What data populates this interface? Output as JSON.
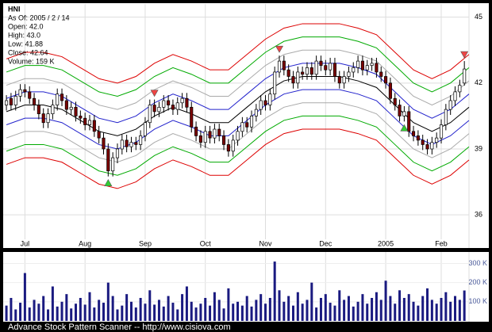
{
  "chart_data": {
    "type": "candlestick",
    "ticker": "HNI",
    "info": [
      "As Of: 2005 / 2 / 14",
      "Open: 42.0",
      "High: 43.0",
      "Low: 41.88",
      "Close: 42.64",
      "Volume: 159 K"
    ],
    "footer": "Advance Stock Pattern Scanner -- http://www.cisiova.com",
    "xlim": [
      -0.7,
      100
    ],
    "xticks": [
      {
        "value": 4,
        "label": "Jul"
      },
      {
        "value": 17,
        "label": "Aug"
      },
      {
        "value": 30,
        "label": "Sep"
      },
      {
        "value": 43,
        "label": "Oct"
      },
      {
        "value": 56,
        "label": "Nov"
      },
      {
        "value": 69,
        "label": "Dec"
      },
      {
        "value": 82,
        "label": "2005"
      },
      {
        "value": 94,
        "label": "Feb"
      }
    ],
    "ylim": [
      34.6,
      45.6
    ],
    "yticks": [
      36,
      39,
      42,
      45
    ],
    "grid": true,
    "up_color": "#ffffff",
    "down_color": "#7a0000",
    "open": [
      41.0,
      41.3,
      41.0,
      41.4,
      41.7,
      41.6,
      41.3,
      41.0,
      40.6,
      40.2,
      40.6,
      41.0,
      41.5,
      41.2,
      40.8,
      40.9,
      40.5,
      40.4,
      40.1,
      40.3,
      39.8,
      39.5,
      39.0,
      38.0,
      38.6,
      39.0,
      39.4,
      39.1,
      39.3,
      39.2,
      39.6,
      40.2,
      41.0,
      40.7,
      40.9,
      41.2,
      41.0,
      40.8,
      41.1,
      41.3,
      40.9,
      40.0,
      39.6,
      39.3,
      39.8,
      39.5,
      39.9,
      39.6,
      39.2,
      38.9,
      39.4,
      39.8,
      40.2,
      40.0,
      40.5,
      40.8,
      41.2,
      41.0,
      41.5,
      42.5,
      43.0,
      42.6,
      42.3,
      42.0,
      42.5,
      42.4,
      42.7,
      42.4,
      43.0,
      42.8,
      42.6,
      42.9,
      42.3,
      42.0,
      42.3,
      42.5,
      42.7,
      43.0,
      42.6,
      42.8,
      42.9,
      42.5,
      42.3,
      42.0,
      41.3,
      41.0,
      40.5,
      40.7,
      39.8,
      39.6,
      39.4,
      39.2,
      39.0,
      39.3,
      39.5,
      40.1,
      40.8,
      41.2,
      41.6,
      42.0
    ],
    "high": [
      41.45,
      41.55,
      41.65,
      41.95,
      41.95,
      41.85,
      41.55,
      41.25,
      40.85,
      40.85,
      41.25,
      41.75,
      41.75,
      41.45,
      41.15,
      41.15,
      40.75,
      40.65,
      40.55,
      40.55,
      40.05,
      39.75,
      39.25,
      38.85,
      39.25,
      39.65,
      39.65,
      39.55,
      39.55,
      39.85,
      40.45,
      41.25,
      41.25,
      41.15,
      41.45,
      41.45,
      41.25,
      41.35,
      41.55,
      41.55,
      41.15,
      40.25,
      39.85,
      40.05,
      40.05,
      40.15,
      40.15,
      39.85,
      39.45,
      39.65,
      40.05,
      40.45,
      40.45,
      40.75,
      41.05,
      41.45,
      41.45,
      41.75,
      42.75,
      43.25,
      43.25,
      42.85,
      42.55,
      42.75,
      42.75,
      42.95,
      42.95,
      43.25,
      43.25,
      43.05,
      43.15,
      43.15,
      42.55,
      42.55,
      42.75,
      42.95,
      43.25,
      43.25,
      43.05,
      43.15,
      43.15,
      42.75,
      42.55,
      42.25,
      41.55,
      41.25,
      40.95,
      40.95,
      40.05,
      39.85,
      39.65,
      39.45,
      39.55,
      39.75,
      40.35,
      41.05,
      41.45,
      41.85,
      42.15,
      43.0
    ],
    "low": [
      40.75,
      40.75,
      40.75,
      41.15,
      41.35,
      41.05,
      40.75,
      40.35,
      39.95,
      39.95,
      40.35,
      40.75,
      40.95,
      40.55,
      40.55,
      40.25,
      40.15,
      39.85,
      39.85,
      39.55,
      39.25,
      38.75,
      37.75,
      37.75,
      38.35,
      38.75,
      38.85,
      38.85,
      38.95,
      38.95,
      39.35,
      39.95,
      40.45,
      40.45,
      40.65,
      40.75,
      40.55,
      40.55,
      40.85,
      40.65,
      39.75,
      39.35,
      39.05,
      39.05,
      39.25,
      39.25,
      39.35,
      38.95,
      38.65,
      38.65,
      39.15,
      39.55,
      39.75,
      39.75,
      40.25,
      40.55,
      40.75,
      40.75,
      41.25,
      42.25,
      42.35,
      42.05,
      41.75,
      41.75,
      42.15,
      42.15,
      42.15,
      42.15,
      42.55,
      42.35,
      42.35,
      42.05,
      41.75,
      41.75,
      42.05,
      42.25,
      42.45,
      42.35,
      42.35,
      42.55,
      42.25,
      42.05,
      41.75,
      41.05,
      40.75,
      40.25,
      40.25,
      39.55,
      39.35,
      39.15,
      38.95,
      38.75,
      38.75,
      39.05,
      39.25,
      39.85,
      40.55,
      40.95,
      41.35,
      41.88
    ],
    "close": [
      41.2,
      41.0,
      41.4,
      41.7,
      41.6,
      41.3,
      41.0,
      40.6,
      40.2,
      40.6,
      41.0,
      41.5,
      41.2,
      40.8,
      40.9,
      40.5,
      40.4,
      40.1,
      40.3,
      39.8,
      39.5,
      39.0,
      38.0,
      38.6,
      39.0,
      39.4,
      39.1,
      39.3,
      39.2,
      39.6,
      40.2,
      41.0,
      40.7,
      40.9,
      41.2,
      41.0,
      40.8,
      41.1,
      41.3,
      40.9,
      40.0,
      39.6,
      39.3,
      39.8,
      39.5,
      39.9,
      39.6,
      39.2,
      38.9,
      39.4,
      39.8,
      40.2,
      40.0,
      40.5,
      40.8,
      41.2,
      41.0,
      41.5,
      42.5,
      43.0,
      42.6,
      42.3,
      42.0,
      42.5,
      42.4,
      42.7,
      42.4,
      43.0,
      42.8,
      42.6,
      42.9,
      42.3,
      42.0,
      42.3,
      42.5,
      42.7,
      43.0,
      42.6,
      42.8,
      42.9,
      42.5,
      42.3,
      42.0,
      41.3,
      41.0,
      40.5,
      40.7,
      39.8,
      39.6,
      39.4,
      39.2,
      39.0,
      39.3,
      39.5,
      40.1,
      40.8,
      41.2,
      41.6,
      41.9,
      42.64
    ],
    "envelope": {
      "x": [
        0,
        4,
        8,
        12,
        16,
        20,
        24,
        28,
        32,
        36,
        40,
        44,
        48,
        52,
        56,
        60,
        64,
        68,
        72,
        76,
        80,
        84,
        88,
        92,
        96,
        100
      ],
      "center": [
        40.7,
        41.0,
        41.0,
        40.8,
        40.3,
        39.8,
        39.6,
        39.9,
        40.5,
        40.9,
        40.6,
        40.2,
        40.2,
        40.9,
        41.6,
        42.1,
        42.3,
        42.3,
        42.3,
        42.1,
        41.8,
        41.0,
        40.2,
        39.8,
        40.2,
        40.9
      ],
      "offsets": [
        2.4,
        1.8,
        1.2,
        0.6,
        0,
        -0.6,
        -1.2,
        -1.8,
        -2.4
      ],
      "colors": [
        "#dd0000",
        "#00aa00",
        "#aaaaaa",
        "#2222cc",
        "#000000",
        "#2222cc",
        "#aaaaaa",
        "#00aa00",
        "#dd0000"
      ]
    },
    "signals": [
      {
        "index": 22,
        "kind": "buy",
        "color": "#33cc33"
      },
      {
        "index": 32,
        "kind": "sell",
        "color": "#ee4444"
      },
      {
        "index": 59,
        "kind": "sell",
        "color": "#ee4444"
      },
      {
        "index": 86,
        "kind": "buy",
        "color": "#33cc33"
      },
      {
        "index": 99,
        "kind": "sell",
        "color": "#ee4444"
      }
    ],
    "volume": {
      "color": "#1a1a80",
      "ylim": [
        0,
        360
      ],
      "yticks": [
        {
          "value": 100,
          "label": "100 K"
        },
        {
          "value": 200,
          "label": "200 K"
        },
        {
          "value": 300,
          "label": "300 K"
        }
      ],
      "values": [
        80,
        120,
        60,
        95,
        250,
        70,
        110,
        90,
        130,
        60,
        180,
        75,
        100,
        140,
        65,
        90,
        120,
        85,
        150,
        70,
        110,
        95,
        200,
        130,
        60,
        80,
        140,
        100,
        70,
        120,
        90,
        160,
        85,
        110,
        75,
        130,
        95,
        60,
        140,
        180,
        100,
        70,
        90,
        120,
        80,
        150,
        110,
        65,
        170,
        90,
        100,
        80,
        130,
        75,
        110,
        140,
        90,
        120,
        310,
        160,
        100,
        130,
        80,
        150,
        90,
        110,
        200,
        70,
        120,
        140,
        95,
        80,
        160,
        110,
        130,
        75,
        100,
        140,
        90,
        120,
        150,
        110,
        210,
        130,
        90,
        160,
        120,
        140,
        100,
        80,
        130,
        170,
        110,
        90,
        120,
        150,
        100,
        130,
        110,
        159
      ]
    }
  }
}
